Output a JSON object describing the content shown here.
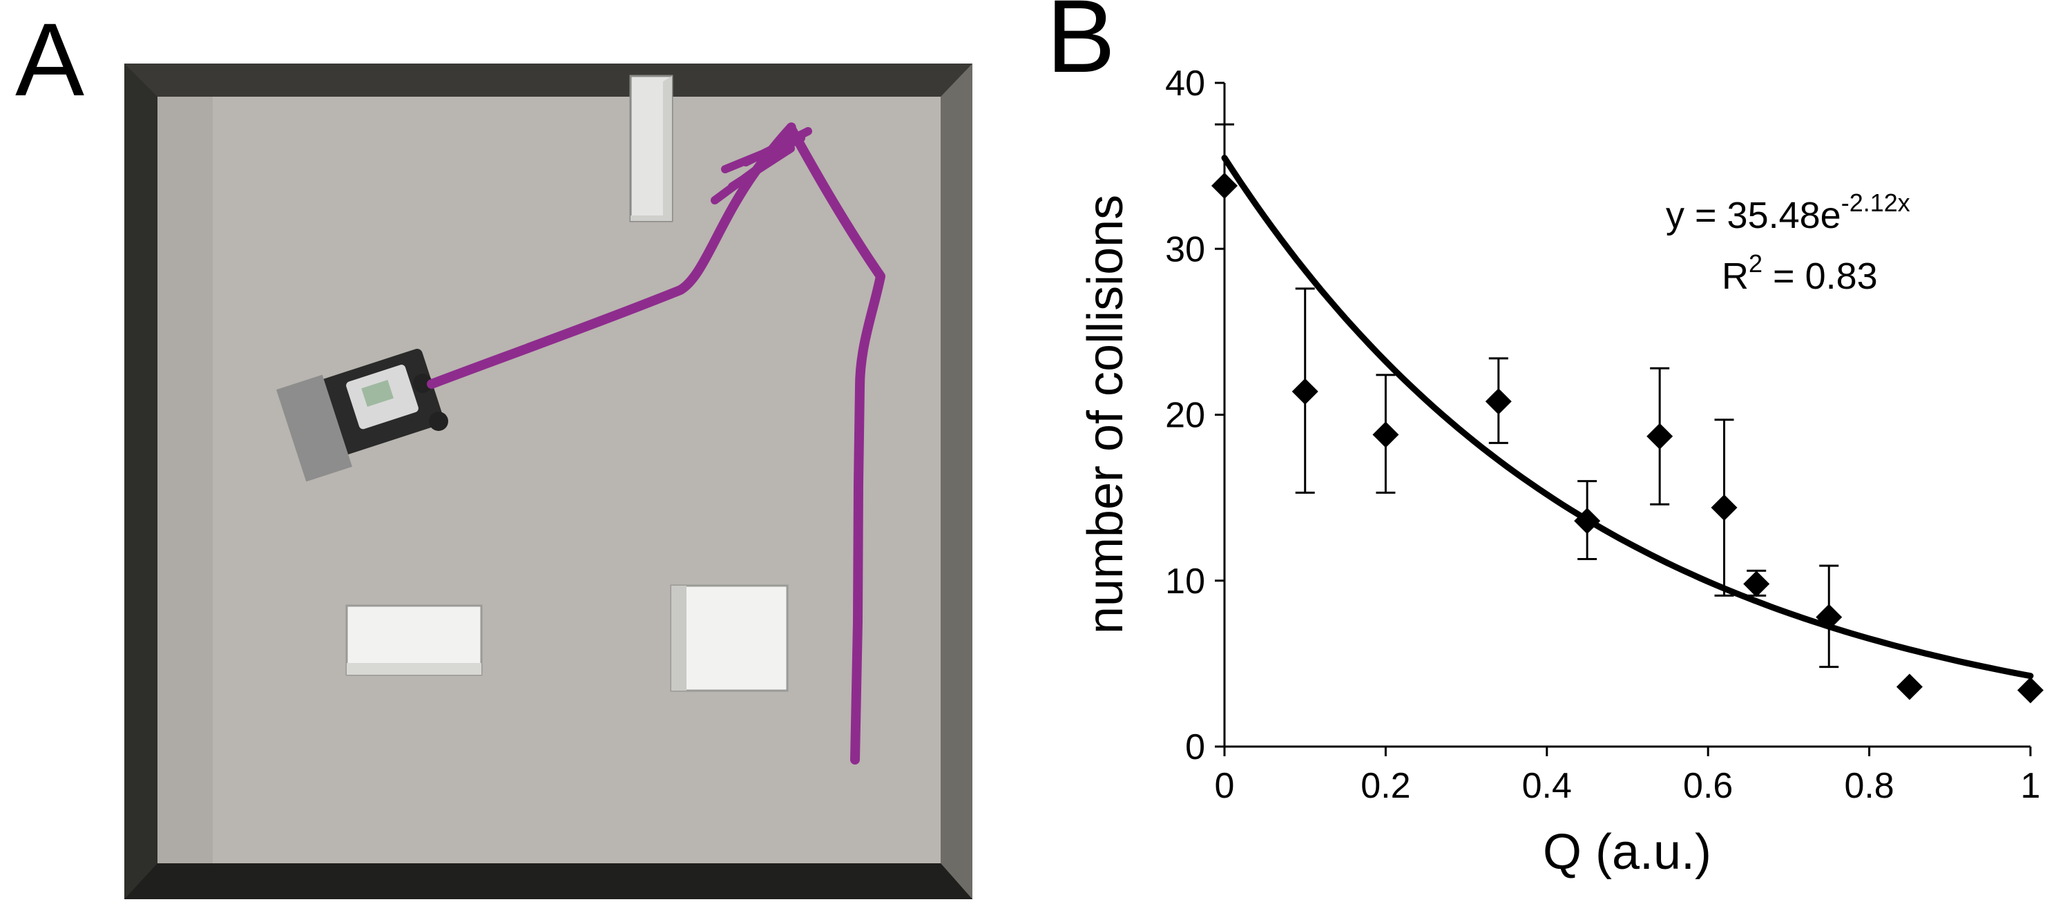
{
  "panels": {
    "a_label": "A",
    "b_label": "B"
  },
  "photo": {
    "description_icons": [
      "robot-icon",
      "box-icon"
    ],
    "trajectory_color": "#8e2c8e",
    "floor_color": "#b9b5b0",
    "wall_color": "#2e2e2b"
  },
  "chart_data": {
    "type": "scatter",
    "title": "",
    "xlabel": "Q (a.u.)",
    "ylabel": "number of collisions",
    "xlim": [
      0,
      1
    ],
    "ylim": [
      0,
      40
    ],
    "xticks": [
      "0",
      "0.2",
      "0.4",
      "0.6",
      "0.8",
      "1"
    ],
    "xtick_values": [
      0,
      0.2,
      0.4,
      0.6,
      0.8,
      1
    ],
    "yticks": [
      "0",
      "10",
      "20",
      "30",
      "40"
    ],
    "ytick_values": [
      0,
      10,
      20,
      30,
      40
    ],
    "grid": false,
    "marker": "diamond",
    "marker_color": "#000000",
    "series": [
      {
        "points": [
          {
            "x": 0.0,
            "y": 33.8,
            "err_low": 33.8,
            "err_high": 37.5
          },
          {
            "x": 0.1,
            "y": 21.4,
            "err_low": 15.3,
            "err_high": 27.6
          },
          {
            "x": 0.2,
            "y": 18.8,
            "err_low": 15.3,
            "err_high": 22.4
          },
          {
            "x": 0.34,
            "y": 20.8,
            "err_low": 18.3,
            "err_high": 23.4
          },
          {
            "x": 0.45,
            "y": 13.6,
            "err_low": 11.3,
            "err_high": 16.0
          },
          {
            "x": 0.54,
            "y": 18.7,
            "err_low": 14.6,
            "err_high": 22.8
          },
          {
            "x": 0.62,
            "y": 14.4,
            "err_low": 9.1,
            "err_high": 19.7
          },
          {
            "x": 0.66,
            "y": 9.8,
            "err_low": 9.1,
            "err_high": 10.6
          },
          {
            "x": 0.75,
            "y": 7.8,
            "err_low": 4.8,
            "err_high": 10.9
          },
          {
            "x": 0.85,
            "y": 3.6,
            "err_low": 3.6,
            "err_high": 3.6
          },
          {
            "x": 1.0,
            "y": 3.4,
            "err_low": 3.4,
            "err_high": 3.4
          }
        ]
      }
    ],
    "fit": {
      "a": 35.48,
      "b": -2.12,
      "equation_prefix": "y = 35.48e",
      "equation_exponent": "-2.12x",
      "r2_prefix": "R",
      "r2_sup": "2",
      "r2_suffix": " = 0.83"
    }
  }
}
